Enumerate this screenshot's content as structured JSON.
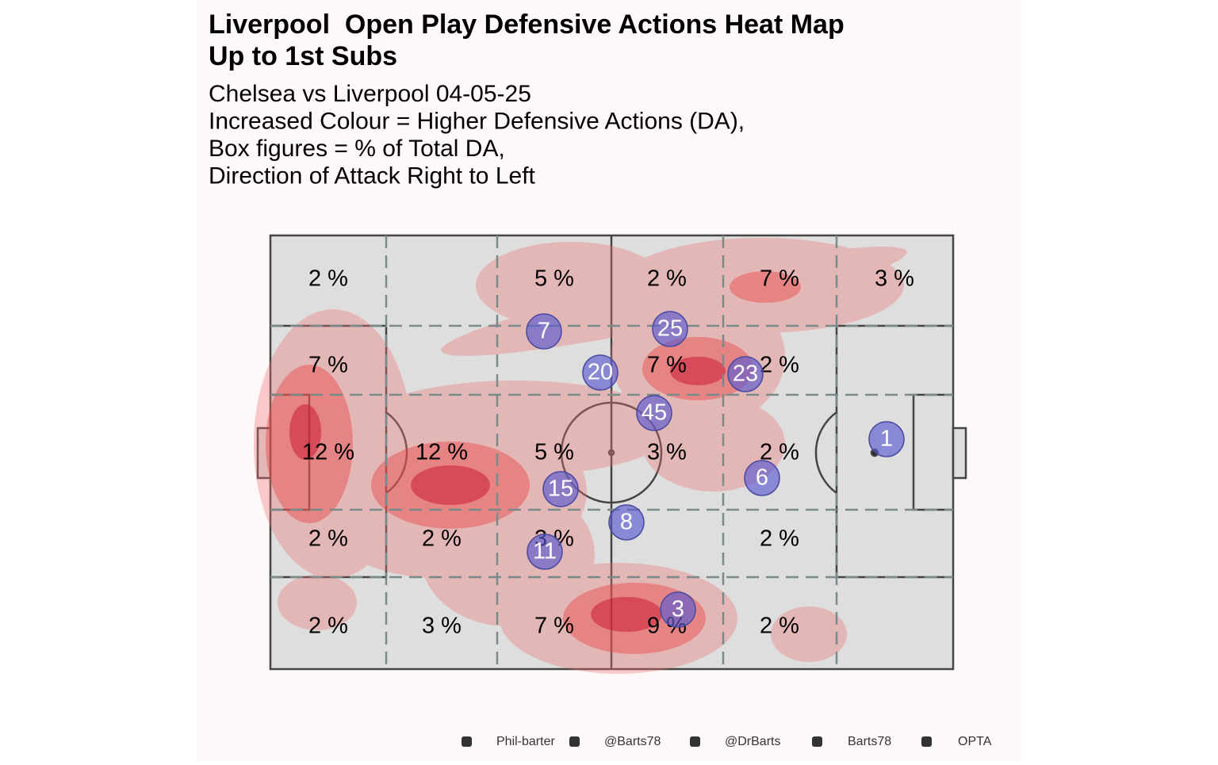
{
  "chart_data": {
    "type": "heatmap",
    "title": [
      "Liverpool  Open Play Defensive Actions Heat Map",
      "Up to 1st Subs"
    ],
    "subtitle": [
      "Chelsea vs Liverpool 04-05-25",
      "Increased Colour = Higher Defensive Actions (DA),",
      "Box figures = % of Total DA,",
      "Direction of Attack Right to Left"
    ],
    "values": [
      2,
      5,
      2,
      7,
      3,
      7,
      7,
      2,
      12,
      12,
      5,
      3,
      2,
      2,
      2,
      3,
      2,
      2,
      3,
      7,
      9,
      2
    ],
    "value_labels": [
      "2 %",
      "5 %",
      "2 %",
      "7 %",
      "3 %",
      "7 %",
      "7 %",
      "2 %",
      "12 %",
      "12 %",
      "5 %",
      "3 %",
      "2 %",
      "2 %",
      "2 %",
      "3 %",
      "2 %",
      "2 %",
      "3 %",
      "7 %",
      "9 %",
      "2 %"
    ],
    "players": [
      7,
      25,
      20,
      23,
      45,
      1,
      6,
      15,
      8,
      11,
      3
    ],
    "footer": [
      "Phil-barter",
      "@Barts78",
      "@DrBarts",
      "Barts78",
      "OPTA"
    ]
  }
}
